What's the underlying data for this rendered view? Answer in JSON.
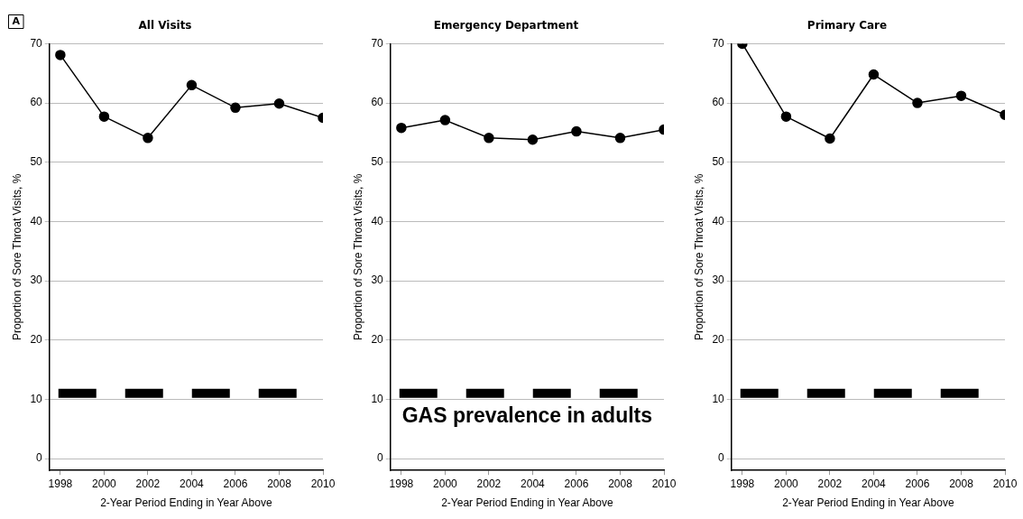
{
  "chart_data": [
    {
      "type": "line",
      "title": "All Visits",
      "xlabel": "2-Year Period Ending in Year Above",
      "ylabel": "Proportion of Sore Throat Visits, %",
      "x": [
        1998,
        2000,
        2002,
        2004,
        2006,
        2008,
        2010
      ],
      "series": [
        {
          "color": "#000000",
          "values": [
            68.1,
            57.7,
            54.1,
            63.0,
            59.2,
            59.9,
            57.5
          ]
        }
      ],
      "xlim": [
        1997.5,
        2010
      ],
      "xticks": [
        1998,
        2000,
        2002,
        2004,
        2006,
        2008,
        2010
      ],
      "ylim": [
        -2,
        70
      ],
      "yticks": [
        0,
        10,
        20,
        30,
        40,
        50,
        60,
        70
      ],
      "grid": "y",
      "legend": false,
      "marker": "circle",
      "line_style": "solid",
      "ref_lines": [
        {
          "axis": "y",
          "value": 11,
          "color": "#000000",
          "line_style": "dashed"
        }
      ],
      "annotations": [
        "A"
      ]
    },
    {
      "type": "line",
      "title": "Emergency Department",
      "xlabel": "2-Year Period Ending in Year Above",
      "ylabel": "Proportion of Sore Throat Visits, %",
      "x": [
        1998,
        2000,
        2002,
        2004,
        2006,
        2008,
        2010
      ],
      "series": [
        {
          "color": "#000000",
          "values": [
            55.8,
            57.1,
            54.1,
            53.8,
            55.2,
            54.1,
            55.5
          ]
        }
      ],
      "xlim": [
        1997.5,
        2010
      ],
      "xticks": [
        1998,
        2000,
        2002,
        2004,
        2006,
        2008,
        2010
      ],
      "ylim": [
        -2,
        70
      ],
      "yticks": [
        0,
        10,
        20,
        30,
        40,
        50,
        60,
        70
      ],
      "grid": "y",
      "legend": false,
      "marker": "circle",
      "line_style": "solid",
      "ref_lines": [
        {
          "axis": "y",
          "value": 11,
          "color": "#000000",
          "line_style": "dashed",
          "label": "GAS prevalence in adults"
        }
      ]
    },
    {
      "type": "line",
      "title": "Primary Care",
      "xlabel": "2-Year Period Ending in Year Above",
      "ylabel": "Proportion of Sore Throat Visits, %",
      "x": [
        1998,
        2000,
        2002,
        2004,
        2006,
        2008,
        2010
      ],
      "series": [
        {
          "color": "#000000",
          "values": [
            70.0,
            57.7,
            54.0,
            64.8,
            60.0,
            61.2,
            58.0
          ]
        }
      ],
      "xlim": [
        1997.5,
        2010
      ],
      "xticks": [
        1998,
        2000,
        2002,
        2004,
        2006,
        2008,
        2010
      ],
      "ylim": [
        -2,
        70
      ],
      "yticks": [
        0,
        10,
        20,
        30,
        40,
        50,
        60,
        70
      ],
      "grid": "y",
      "legend": false,
      "marker": "circle",
      "line_style": "solid",
      "ref_lines": [
        {
          "axis": "y",
          "value": 11,
          "color": "#000000",
          "line_style": "dashed"
        }
      ]
    }
  ]
}
